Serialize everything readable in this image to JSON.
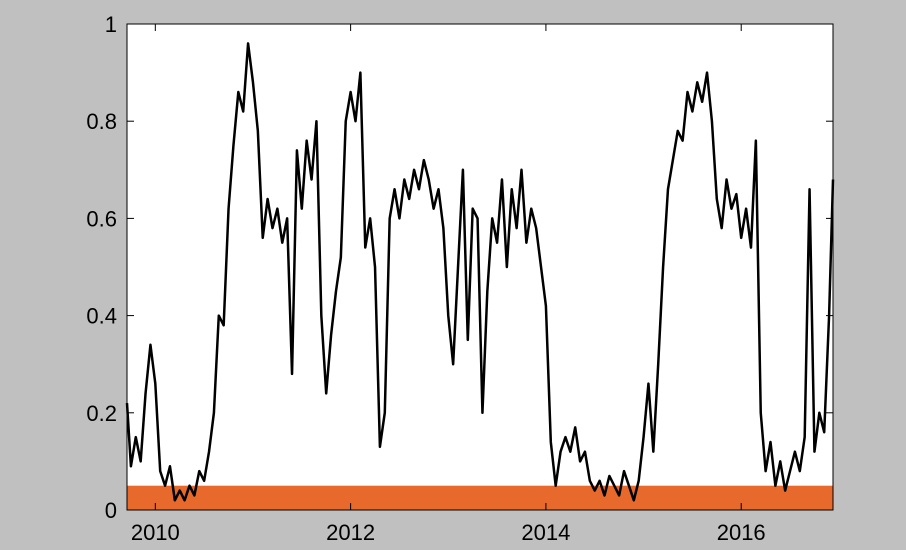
{
  "chart_data": {
    "type": "line",
    "x": [
      2009.71,
      2009.75,
      2009.8,
      2009.85,
      2009.9,
      2009.95,
      2010.0,
      2010.05,
      2010.1,
      2010.15,
      2010.2,
      2010.25,
      2010.3,
      2010.35,
      2010.4,
      2010.45,
      2010.5,
      2010.55,
      2010.6,
      2010.65,
      2010.7,
      2010.75,
      2010.8,
      2010.85,
      2010.9,
      2010.95,
      2011.0,
      2011.05,
      2011.1,
      2011.15,
      2011.2,
      2011.25,
      2011.3,
      2011.35,
      2011.4,
      2011.45,
      2011.5,
      2011.55,
      2011.6,
      2011.65,
      2011.7,
      2011.75,
      2011.8,
      2011.85,
      2011.9,
      2011.95,
      2012.0,
      2012.05,
      2012.1,
      2012.15,
      2012.2,
      2012.25,
      2012.3,
      2012.35,
      2012.4,
      2012.45,
      2012.5,
      2012.55,
      2012.6,
      2012.65,
      2012.7,
      2012.75,
      2012.8,
      2012.85,
      2012.9,
      2012.95,
      2013.0,
      2013.05,
      2013.1,
      2013.15,
      2013.2,
      2013.25,
      2013.3,
      2013.35,
      2013.4,
      2013.45,
      2013.5,
      2013.55,
      2013.6,
      2013.65,
      2013.7,
      2013.75,
      2013.8,
      2013.85,
      2013.9,
      2013.95,
      2014.0,
      2014.05,
      2014.1,
      2014.15,
      2014.2,
      2014.25,
      2014.3,
      2014.35,
      2014.4,
      2014.45,
      2014.5,
      2014.55,
      2014.6,
      2014.65,
      2014.7,
      2014.75,
      2014.8,
      2014.85,
      2014.9,
      2014.95,
      2015.0,
      2015.05,
      2015.1,
      2015.15,
      2015.2,
      2015.25,
      2015.3,
      2015.35,
      2015.4,
      2015.45,
      2015.5,
      2015.55,
      2015.6,
      2015.65,
      2015.7,
      2015.75,
      2015.8,
      2015.85,
      2015.9,
      2015.95,
      2016.0,
      2016.05,
      2016.1,
      2016.15,
      2016.2,
      2016.25,
      2016.3,
      2016.35,
      2016.4,
      2016.45,
      2016.5,
      2016.55,
      2016.6,
      2016.65,
      2016.7,
      2016.75,
      2016.8,
      2016.85,
      2016.9,
      2016.94
    ],
    "series": [
      {
        "color": "#000000",
        "values": [
          0.22,
          0.09,
          0.15,
          0.1,
          0.24,
          0.34,
          0.26,
          0.08,
          0.05,
          0.09,
          0.02,
          0.04,
          0.02,
          0.05,
          0.03,
          0.08,
          0.06,
          0.12,
          0.2,
          0.4,
          0.38,
          0.62,
          0.75,
          0.86,
          0.82,
          0.96,
          0.88,
          0.78,
          0.56,
          0.64,
          0.58,
          0.62,
          0.55,
          0.6,
          0.28,
          0.74,
          0.62,
          0.76,
          0.68,
          0.8,
          0.4,
          0.24,
          0.36,
          0.45,
          0.52,
          0.8,
          0.86,
          0.8,
          0.9,
          0.54,
          0.6,
          0.5,
          0.13,
          0.2,
          0.6,
          0.66,
          0.6,
          0.68,
          0.64,
          0.7,
          0.66,
          0.72,
          0.68,
          0.62,
          0.66,
          0.58,
          0.4,
          0.3,
          0.5,
          0.7,
          0.35,
          0.62,
          0.6,
          0.2,
          0.45,
          0.6,
          0.55,
          0.68,
          0.5,
          0.66,
          0.58,
          0.7,
          0.55,
          0.62,
          0.58,
          0.5,
          0.42,
          0.14,
          0.05,
          0.12,
          0.15,
          0.12,
          0.17,
          0.1,
          0.12,
          0.06,
          0.04,
          0.06,
          0.03,
          0.07,
          0.05,
          0.03,
          0.08,
          0.05,
          0.02,
          0.06,
          0.15,
          0.26,
          0.12,
          0.3,
          0.5,
          0.66,
          0.72,
          0.78,
          0.76,
          0.86,
          0.82,
          0.88,
          0.84,
          0.9,
          0.8,
          0.64,
          0.58,
          0.68,
          0.62,
          0.65,
          0.56,
          0.62,
          0.54,
          0.76,
          0.2,
          0.08,
          0.14,
          0.05,
          0.1,
          0.04,
          0.08,
          0.12,
          0.08,
          0.15,
          0.66,
          0.12,
          0.2,
          0.16,
          0.4,
          0.68
        ]
      }
    ],
    "band": {
      "ylim": [
        0,
        0.05
      ],
      "color": "#e8692c"
    },
    "xlim": [
      2009.71,
      2016.94
    ],
    "xticks": [
      2010,
      2012,
      2014,
      2016
    ],
    "ylim": [
      0,
      1
    ],
    "yticks": [
      0,
      0.2,
      0.4,
      0.6,
      0.8,
      1
    ]
  }
}
